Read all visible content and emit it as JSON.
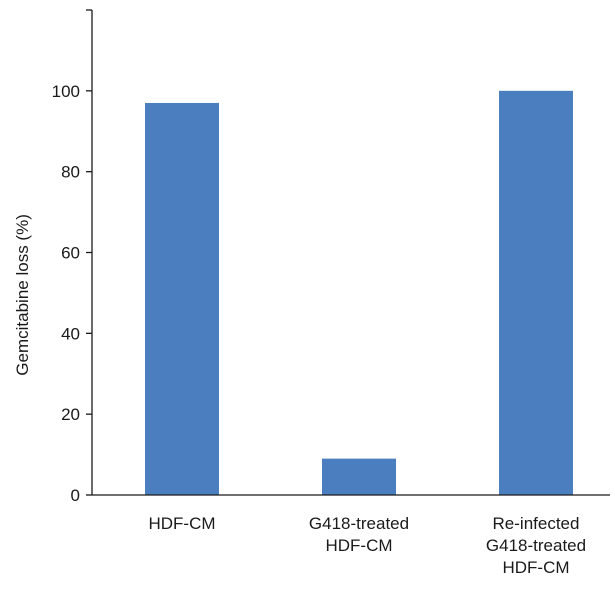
{
  "chart_data": {
    "type": "bar",
    "categories": [
      [
        "HDF-CM"
      ],
      [
        "G418-treated",
        "HDF-CM"
      ],
      [
        "Re-infected",
        "G418-treated",
        "HDF-CM"
      ]
    ],
    "values": [
      97,
      9,
      100
    ],
    "title": "",
    "xlabel": "",
    "ylabel": "Gemcitabine loss (%)",
    "ylim": [
      0,
      120
    ],
    "yticks": [
      0,
      20,
      40,
      60,
      80,
      100
    ],
    "grid": false,
    "legend": "none",
    "colors": {
      "bar": "#4a7ebf",
      "axis": "#1a1a1a"
    }
  }
}
